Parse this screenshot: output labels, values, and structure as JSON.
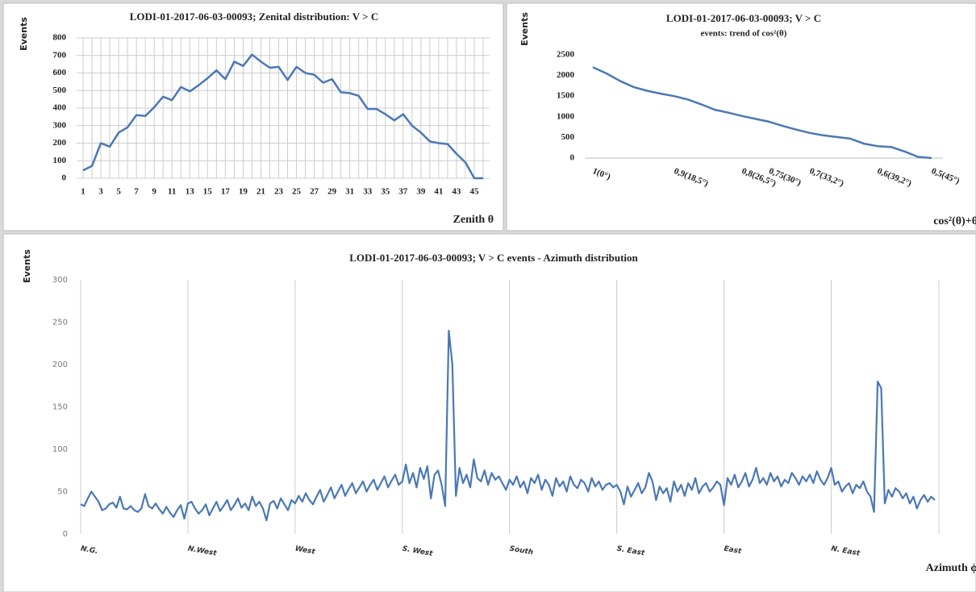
{
  "chart_data": [
    {
      "type": "line",
      "title": "LODI-01-2017-06-03-00093; Zenital distribution:  V > C",
      "y_label": "Events",
      "x_label": "Zenith θ",
      "categories": [
        1,
        null,
        3,
        null,
        5,
        null,
        7,
        null,
        9,
        null,
        11,
        null,
        13,
        null,
        15,
        null,
        17,
        null,
        19,
        null,
        21,
        null,
        23,
        null,
        25,
        null,
        27,
        null,
        29,
        null,
        31,
        null,
        33,
        null,
        35,
        null,
        37,
        null,
        39,
        null,
        41,
        null,
        43,
        null,
        45,
        null
      ],
      "values": [
        45,
        70,
        200,
        180,
        260,
        290,
        360,
        355,
        405,
        465,
        445,
        520,
        495,
        530,
        570,
        615,
        565,
        665,
        640,
        705,
        665,
        630,
        635,
        560,
        635,
        600,
        590,
        545,
        565,
        490,
        485,
        470,
        395,
        395,
        365,
        330,
        365,
        300,
        260,
        210,
        200,
        195,
        140,
        90,
        0,
        0
      ],
      "color": "#4a78b5",
      "ylim": [
        0,
        800
      ],
      "yticks": [
        0,
        100,
        200,
        300,
        400,
        500,
        600,
        700,
        800
      ],
      "xgrid": true,
      "ygrid": true
    },
    {
      "type": "line",
      "title": "LODI-01-2017-06-03-00093; V > C",
      "subtitle": "events: trend of cos²(θ)",
      "y_label": "Events",
      "x_label": "cos²(θ)+θ",
      "categories": [
        "1(0°)",
        null,
        null,
        null,
        null,
        null,
        "0,9(18,5°)",
        null,
        null,
        null,
        null,
        "0,8(26,5°)",
        null,
        "0,75(30°)",
        null,
        null,
        "0,7(33,2°)",
        null,
        null,
        null,
        null,
        "0,6(39,2°)",
        null,
        null,
        null,
        "0,5(45°)"
      ],
      "values": [
        2200,
        2050,
        1870,
        1720,
        1630,
        1560,
        1500,
        1420,
        1300,
        1170,
        1100,
        1020,
        950,
        880,
        780,
        690,
        610,
        550,
        510,
        470,
        350,
        290,
        270,
        160,
        30,
        0
      ],
      "color": "#4a78b5",
      "ylim": [
        0,
        2500
      ],
      "yticks": [
        0,
        500,
        1000,
        1500,
        2000,
        2500
      ],
      "xgrid": false,
      "ygrid": false
    },
    {
      "type": "line",
      "title": "LODI-01-2017-06-03-00093;  V > C events - Azimuth distribution",
      "y_label": "Events",
      "x_label": "Azimuth ϕ",
      "categories": [
        "N.G.",
        null,
        null,
        null,
        null,
        null,
        null,
        null,
        null,
        null,
        null,
        null,
        null,
        null,
        null,
        null,
        null,
        null,
        null,
        null,
        null,
        null,
        null,
        null,
        null,
        null,
        null,
        null,
        null,
        null,
        "N.West",
        null,
        null,
        null,
        null,
        null,
        null,
        null,
        null,
        null,
        null,
        null,
        null,
        null,
        null,
        null,
        null,
        null,
        null,
        null,
        null,
        null,
        null,
        null,
        null,
        null,
        null,
        null,
        null,
        null,
        "West",
        null,
        null,
        null,
        null,
        null,
        null,
        null,
        null,
        null,
        null,
        null,
        null,
        null,
        null,
        null,
        null,
        null,
        null,
        null,
        null,
        null,
        null,
        null,
        null,
        null,
        null,
        null,
        null,
        null,
        "S. West",
        null,
        null,
        null,
        null,
        null,
        null,
        null,
        null,
        null,
        null,
        null,
        null,
        null,
        null,
        null,
        null,
        null,
        null,
        null,
        null,
        null,
        null,
        null,
        null,
        null,
        null,
        null,
        null,
        null,
        "South",
        null,
        null,
        null,
        null,
        null,
        null,
        null,
        null,
        null,
        null,
        null,
        null,
        null,
        null,
        null,
        null,
        null,
        null,
        null,
        null,
        null,
        null,
        null,
        null,
        null,
        null,
        null,
        null,
        null,
        "S. East",
        null,
        null,
        null,
        null,
        null,
        null,
        null,
        null,
        null,
        null,
        null,
        null,
        null,
        null,
        null,
        null,
        null,
        null,
        null,
        null,
        null,
        null,
        null,
        null,
        null,
        null,
        null,
        null,
        null,
        "East",
        null,
        null,
        null,
        null,
        null,
        null,
        null,
        null,
        null,
        null,
        null,
        null,
        null,
        null,
        null,
        null,
        null,
        null,
        null,
        null,
        null,
        null,
        null,
        null,
        null,
        null,
        null,
        null,
        null,
        "N. East",
        null,
        null,
        null,
        null,
        null,
        null,
        null,
        null,
        null,
        null,
        null,
        null,
        null,
        null,
        null,
        null,
        null,
        null,
        null,
        null,
        null,
        null,
        null,
        null,
        null,
        null,
        null,
        null,
        null
      ],
      "values": [
        35,
        33,
        42,
        50,
        44,
        38,
        28,
        30,
        35,
        37,
        31,
        44,
        30,
        29,
        33,
        28,
        26,
        30,
        47,
        33,
        30,
        36,
        29,
        24,
        32,
        25,
        20,
        28,
        34,
        18,
        36,
        38,
        30,
        24,
        28,
        35,
        22,
        30,
        38,
        27,
        33,
        40,
        28,
        34,
        42,
        31,
        36,
        28,
        44,
        33,
        38,
        30,
        16,
        36,
        39,
        30,
        42,
        35,
        28,
        40,
        36,
        45,
        38,
        48,
        40,
        35,
        44,
        52,
        38,
        46,
        55,
        42,
        50,
        58,
        45,
        53,
        60,
        48,
        55,
        62,
        50,
        58,
        64,
        52,
        60,
        68,
        55,
        63,
        70,
        58,
        62,
        82,
        60,
        72,
        55,
        78,
        65,
        80,
        42,
        70,
        75,
        58,
        33,
        240,
        200,
        45,
        78,
        60,
        70,
        55,
        88,
        66,
        62,
        75,
        58,
        72,
        64,
        68,
        60,
        52,
        64,
        58,
        68,
        55,
        62,
        48,
        66,
        60,
        70,
        52,
        64,
        58,
        45,
        66,
        56,
        62,
        50,
        68,
        58,
        54,
        64,
        60,
        50,
        66,
        56,
        62,
        52,
        58,
        60,
        55,
        58,
        50,
        35,
        56,
        44,
        52,
        60,
        48,
        55,
        72,
        62,
        40,
        56,
        48,
        54,
        38,
        62,
        50,
        58,
        45,
        60,
        52,
        66,
        48,
        56,
        60,
        50,
        55,
        62,
        58,
        34,
        66,
        58,
        70,
        55,
        62,
        72,
        56,
        64,
        78,
        60,
        66,
        58,
        72,
        62,
        68,
        56,
        64,
        60,
        72,
        66,
        58,
        68,
        62,
        70,
        60,
        74,
        64,
        58,
        66,
        78,
        58,
        62,
        50,
        56,
        60,
        48,
        58,
        54,
        62,
        50,
        44,
        26,
        180,
        172,
        36,
        52,
        44,
        54,
        50,
        42,
        48,
        36,
        44,
        30,
        40,
        46,
        38,
        44,
        40
      ],
      "color": "#4a78b5",
      "ylim": [
        0,
        300
      ],
      "yticks": [
        0,
        50,
        100,
        150,
        200,
        250,
        300
      ],
      "xgrid": true,
      "ygrid": false
    }
  ]
}
